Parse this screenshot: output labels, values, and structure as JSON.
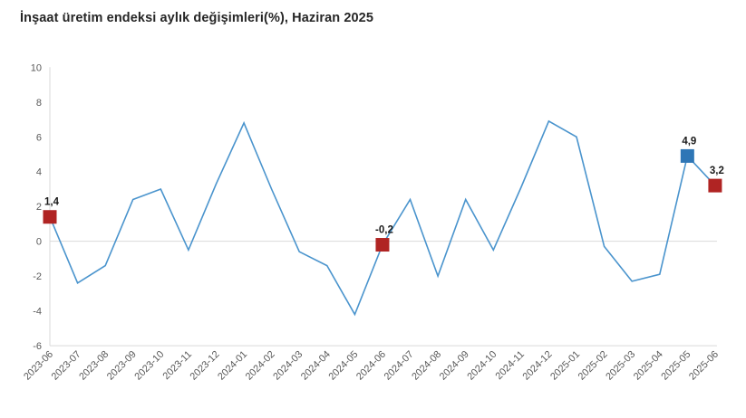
{
  "title": "İnşaat üretim endeksi aylık değişimleri(%), Haziran 2025",
  "colors": {
    "line": "#4a94cd",
    "marker_red": "#b02423",
    "marker_blue": "#2e76b6",
    "grid": "#d9d9d9",
    "axis_text": "#595959",
    "title_text": "#262626",
    "point_label_text": "#1a1a1a",
    "background": "#ffffff"
  },
  "chart_data": {
    "type": "line",
    "title": "İnşaat üretim endeksi aylık değişimleri(%), Haziran 2025",
    "xlabel": "",
    "ylabel": "",
    "ylim": [
      -6,
      10
    ],
    "ytick_step": 2,
    "ytick_labels": [
      "10",
      "8",
      "6",
      "4",
      "2",
      "0",
      "-2",
      "-4",
      "-6"
    ],
    "grid": "zero-line-and-bottom-only",
    "legend_position": "none",
    "categories": [
      "2023-06",
      "2023-07",
      "2023-08",
      "2023-09",
      "2023-10",
      "2023-11",
      "2023-12",
      "2024-01",
      "2024-02",
      "2024-03",
      "2024-04",
      "2024-05",
      "2024-06",
      "2024-07",
      "2024-08",
      "2024-09",
      "2024-10",
      "2024-11",
      "2024-12",
      "2025-01",
      "2025-02",
      "2025-03",
      "2025-04",
      "2025-05",
      "2025-06"
    ],
    "values": [
      1.4,
      -2.4,
      -1.4,
      2.4,
      3.0,
      -0.5,
      3.3,
      6.8,
      3.0,
      -0.6,
      -1.4,
      -4.2,
      -0.2,
      2.4,
      -2.0,
      2.4,
      -0.5,
      3.1,
      6.9,
      6.0,
      -0.3,
      -2.3,
      -1.9,
      4.9,
      3.2
    ],
    "markers": [
      {
        "index": 0,
        "label": "1,4",
        "color_key": "marker_red"
      },
      {
        "index": 12,
        "label": "-0,2",
        "color_key": "marker_red"
      },
      {
        "index": 23,
        "label": "4,9",
        "color_key": "marker_blue"
      },
      {
        "index": 24,
        "label": "3,2",
        "color_key": "marker_red"
      }
    ]
  }
}
